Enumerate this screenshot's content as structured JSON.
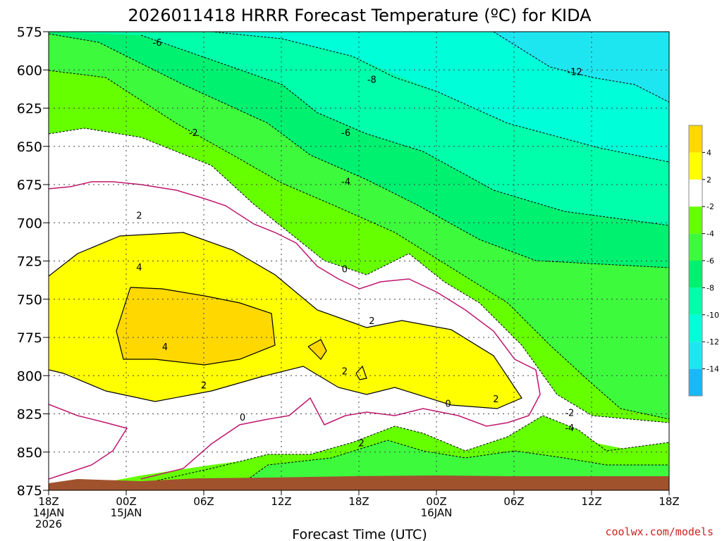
{
  "chart_data": {
    "type": "heatmap",
    "title": "2026011418 HRRR Forecast Temperature (ºC) for KIDA",
    "xlabel": "Forecast Time (UTC)",
    "ylabel": "",
    "credit": "coolwx.com/models",
    "ylim": [
      875,
      575
    ],
    "pressure_ticks": [
      "575",
      "600",
      "625",
      "650",
      "675",
      "700",
      "725",
      "750",
      "775",
      "800",
      "825",
      "850",
      "875"
    ],
    "x_ticks": [
      {
        "hour": 0,
        "line1": "18Z",
        "line2": "14JAN",
        "line3": "2026"
      },
      {
        "hour": 6,
        "line1": "00Z",
        "line2": "15JAN",
        "line3": ""
      },
      {
        "hour": 12,
        "line1": "06Z",
        "line2": "",
        "line3": ""
      },
      {
        "hour": 18,
        "line1": "12Z",
        "line2": "",
        "line3": ""
      },
      {
        "hour": 24,
        "line1": "18Z",
        "line2": "",
        "line3": ""
      },
      {
        "hour": 30,
        "line1": "00Z",
        "line2": "16JAN",
        "line3": ""
      },
      {
        "hour": 36,
        "line1": "06Z",
        "line2": "",
        "line3": ""
      },
      {
        "hour": 42,
        "line1": "12Z",
        "line2": "",
        "line3": ""
      },
      {
        "hour": 48,
        "line1": "18Z",
        "line2": "",
        "line3": ""
      }
    ],
    "colorbar": {
      "colors": [
        "#1ab8f7",
        "#1ee6f0",
        "#00ffd8",
        "#00ffaa",
        "#00f070",
        "#3dfa3d",
        "#66ff00",
        "#ffffff",
        "#ffff00",
        "#ffd800"
      ],
      "labels": [
        "-14",
        "-12",
        "-10",
        "-8",
        "-6",
        "-4",
        "-2",
        "2",
        "4"
      ]
    },
    "contour_labels": [
      {
        "text": "-6",
        "hour": 8.4,
        "p": 582
      },
      {
        "text": "-12",
        "hour": 40.7,
        "p": 601
      },
      {
        "text": "-8",
        "hour": 25.0,
        "p": 606
      },
      {
        "text": "-2",
        "hour": 11.2,
        "p": 641
      },
      {
        "text": "-6",
        "hour": 23.0,
        "p": 641
      },
      {
        "text": "-4",
        "hour": 23.0,
        "p": 673
      },
      {
        "text": "2",
        "hour": 7.0,
        "p": 695
      },
      {
        "text": "4",
        "hour": 7.0,
        "p": 729
      },
      {
        "text": "0",
        "hour": 22.9,
        "p": 730
      },
      {
        "text": "2",
        "hour": 25.0,
        "p": 764
      },
      {
        "text": "4",
        "hour": 9.0,
        "p": 781
      },
      {
        "text": "2",
        "hour": 22.9,
        "p": 797
      },
      {
        "text": "2",
        "hour": 12.0,
        "p": 806
      },
      {
        "text": "0",
        "hour": 30.9,
        "p": 818
      },
      {
        "text": "2",
        "hour": 34.6,
        "p": 815
      },
      {
        "text": "-2",
        "hour": 40.3,
        "p": 824
      },
      {
        "text": "0",
        "hour": 15.0,
        "p": 827
      },
      {
        "text": "-4",
        "hour": 40.3,
        "p": 834
      },
      {
        "text": "2",
        "hour": 24.2,
        "p": 844
      }
    ]
  }
}
